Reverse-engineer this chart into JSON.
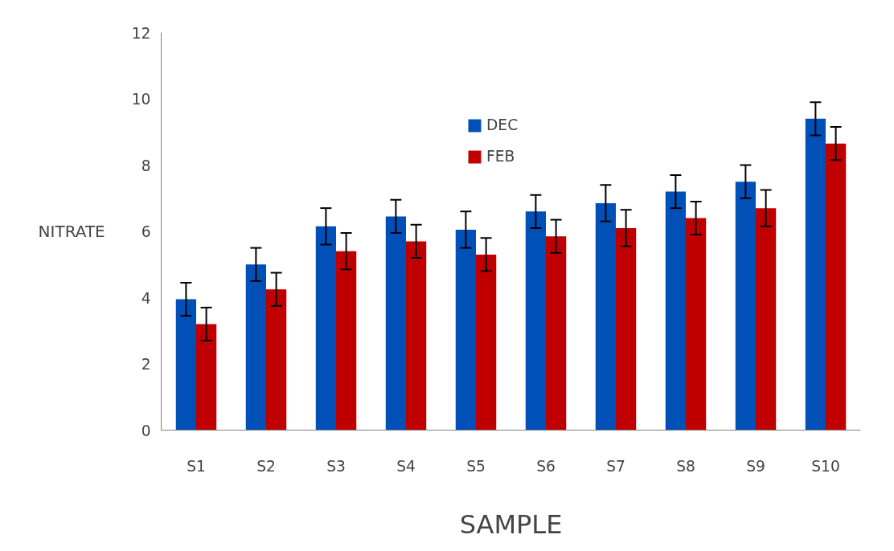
{
  "chart_data": {
    "type": "bar",
    "xlabel": "SAMPLE",
    "ylabel": "NITRATE",
    "categories": [
      "S1",
      "S2",
      "S3",
      "S4",
      "S5",
      "S6",
      "S7",
      "S8",
      "S9",
      "S10"
    ],
    "series": [
      {
        "name": "DEC",
        "color": "#0050b8",
        "values": [
          3.95,
          5.0,
          6.15,
          6.45,
          6.05,
          6.6,
          6.85,
          7.2,
          7.5,
          9.4
        ],
        "errors": [
          0.5,
          0.5,
          0.55,
          0.5,
          0.55,
          0.5,
          0.55,
          0.5,
          0.5,
          0.5
        ]
      },
      {
        "name": "FEB",
        "color": "#c00000",
        "values": [
          3.2,
          4.25,
          5.4,
          5.7,
          5.3,
          5.85,
          6.1,
          6.4,
          6.7,
          8.65
        ],
        "errors": [
          0.5,
          0.5,
          0.55,
          0.5,
          0.5,
          0.5,
          0.55,
          0.5,
          0.55,
          0.5
        ]
      }
    ],
    "ylim": [
      0,
      12
    ],
    "yticks": [
      0,
      2,
      4,
      6,
      8,
      10,
      12
    ],
    "grid": false,
    "legend": "top"
  }
}
